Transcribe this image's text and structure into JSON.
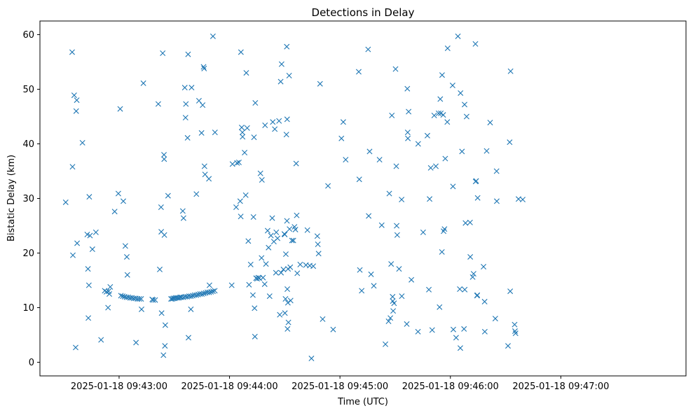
{
  "chart_data": {
    "type": "scatter",
    "title": "Detections in Delay",
    "xlabel": "Time (UTC)",
    "ylabel": "Bistatic Delay (km)",
    "x_unit": "seconds after 2025-01-18 09:42:00",
    "xlim": [
      17,
      368
    ],
    "ylim": [
      -2.5,
      62.5
    ],
    "x_ticks": [
      {
        "value": 60,
        "label": "2025-01-18 09:43:00"
      },
      {
        "value": 120,
        "label": "2025-01-18 09:44:00"
      },
      {
        "value": 180,
        "label": "2025-01-18 09:45:00"
      },
      {
        "value": 240,
        "label": "2025-01-18 09:46:00"
      },
      {
        "value": 300,
        "label": "2025-01-18 09:47:00"
      }
    ],
    "y_ticks": [
      {
        "value": 0,
        "label": "0"
      },
      {
        "value": 10,
        "label": "10"
      },
      {
        "value": 20,
        "label": "20"
      },
      {
        "value": 30,
        "label": "30"
      },
      {
        "value": 40,
        "label": "40"
      },
      {
        "value": 50,
        "label": "50"
      },
      {
        "value": 60,
        "label": "60"
      }
    ],
    "marker": "x",
    "color": "#1f77b4",
    "series": [
      {
        "name": "detections",
        "points": [
          [
            31,
            29.3
          ],
          [
            34.5,
            56.8
          ],
          [
            34.7,
            35.8
          ],
          [
            34.9,
            19.6
          ],
          [
            35.6,
            48.9
          ],
          [
            36.4,
            2.7
          ],
          [
            36.7,
            46.0
          ],
          [
            37,
            48.0
          ],
          [
            37.2,
            21.8
          ],
          [
            40.1,
            40.2
          ],
          [
            42.7,
            23.4
          ],
          [
            43.1,
            17.1
          ],
          [
            43.3,
            8.1
          ],
          [
            43.6,
            14.1
          ],
          [
            43.8,
            30.3
          ],
          [
            44.2,
            23.2
          ],
          [
            45.5,
            20.7
          ],
          [
            47.4,
            23.8
          ],
          [
            50.2,
            4.1
          ],
          [
            52.2,
            13.1
          ],
          [
            53.1,
            12.9
          ],
          [
            54,
            10.0
          ],
          [
            54.3,
            13.0
          ],
          [
            54.7,
            12.5
          ],
          [
            55.2,
            13.8
          ],
          [
            57.6,
            27.6
          ],
          [
            59.6,
            30.9
          ],
          [
            60.6,
            46.4
          ],
          [
            62.3,
            29.5
          ],
          [
            63.4,
            21.3
          ],
          [
            64.2,
            19.3
          ],
          [
            64.5,
            16.0
          ],
          [
            69.2,
            3.6
          ],
          [
            72.2,
            9.7
          ],
          [
            73.2,
            51.1
          ],
          [
            78,
            11.5
          ],
          [
            78.5,
            11.4
          ],
          [
            79.6,
            11.4
          ],
          [
            81.3,
            47.3
          ],
          [
            82.1,
            17.0
          ],
          [
            82.8,
            28.4
          ],
          [
            82.9,
            23.9
          ],
          [
            83.1,
            9.0
          ],
          [
            83.7,
            56.6
          ],
          [
            84.1,
            1.3
          ],
          [
            84.4,
            38.0
          ],
          [
            84.5,
            37.2
          ],
          [
            84.6,
            23.3
          ],
          [
            84.9,
            3.0
          ],
          [
            85.1,
            6.8
          ],
          [
            86.6,
            30.5
          ],
          [
            88.2,
            11.6
          ],
          [
            88.9,
            11.6
          ],
          [
            89.5,
            11.7
          ],
          [
            90.2,
            11.7
          ],
          [
            90.8,
            11.8
          ],
          [
            91.6,
            11.8
          ],
          [
            92.4,
            11.8
          ],
          [
            93.2,
            11.9
          ],
          [
            93.9,
            11.9
          ],
          [
            94.6,
            27.7
          ],
          [
            95,
            26.4
          ],
          [
            95.7,
            50.3
          ],
          [
            96.1,
            44.8
          ],
          [
            96.3,
            47.3
          ],
          [
            97.2,
            41.1
          ],
          [
            97.5,
            56.4
          ],
          [
            97.7,
            4.5
          ],
          [
            99,
            9.7
          ],
          [
            99.4,
            50.3
          ],
          [
            102,
            30.8
          ],
          [
            103.4,
            47.9
          ],
          [
            104.8,
            42.0
          ],
          [
            105.4,
            47.1
          ],
          [
            105.9,
            54.1
          ],
          [
            106.2,
            53.8
          ],
          [
            106.4,
            35.9
          ],
          [
            106.7,
            34.4
          ],
          [
            108.8,
            33.6
          ],
          [
            109.1,
            14.1
          ],
          [
            111,
            59.7
          ],
          [
            112.1,
            42.1
          ],
          [
            121.2,
            14.1
          ],
          [
            121.6,
            36.3
          ],
          [
            123.6,
            28.4
          ],
          [
            124.1,
            36.5
          ],
          [
            125.1,
            36.6
          ],
          [
            125.8,
            29.5
          ],
          [
            126.1,
            26.7
          ],
          [
            126.2,
            56.8
          ],
          [
            126.6,
            43.0
          ],
          [
            127,
            42.1
          ],
          [
            127.1,
            41.3
          ],
          [
            128.2,
            38.4
          ],
          [
            128.8,
            30.6
          ],
          [
            129.1,
            53.0
          ],
          [
            129.6,
            42.9
          ],
          [
            130.2,
            22.2
          ],
          [
            130.6,
            14.2
          ],
          [
            131.5,
            17.9
          ],
          [
            132.7,
            12.3
          ],
          [
            133,
            26.6
          ],
          [
            133.3,
            41.2
          ],
          [
            133.6,
            9.9
          ],
          [
            133.8,
            4.7
          ],
          [
            134,
            47.5
          ],
          [
            134.4,
            15.4
          ],
          [
            135,
            15.3
          ],
          [
            135.6,
            15.5
          ],
          [
            136.2,
            15.4
          ],
          [
            136.8,
            34.6
          ],
          [
            137.4,
            19.1
          ],
          [
            137.6,
            33.4
          ],
          [
            138.2,
            15.5
          ],
          [
            139.1,
            14.3
          ],
          [
            139.3,
            43.4
          ],
          [
            139.8,
            18.0
          ],
          [
            140.7,
            24.1
          ],
          [
            141.2,
            21.0
          ],
          [
            141.8,
            12.1
          ],
          [
            142.5,
            23.2
          ],
          [
            143.2,
            26.4
          ],
          [
            143.5,
            44.0
          ],
          [
            144.1,
            22.1
          ],
          [
            144.6,
            42.7
          ],
          [
            145.2,
            16.4
          ],
          [
            145.4,
            23.8
          ],
          [
            146.1,
            22.7
          ],
          [
            146.9,
            44.2
          ],
          [
            147.3,
            8.7
          ],
          [
            147.8,
            51.4
          ],
          [
            148,
            16.4
          ],
          [
            148.3,
            54.6
          ],
          [
            149.3,
            17.0
          ],
          [
            149.8,
            23.5
          ],
          [
            150,
            23.4
          ],
          [
            150.1,
            9.0
          ],
          [
            150.4,
            11.6
          ],
          [
            150.6,
            19.8
          ],
          [
            150.9,
            41.7
          ],
          [
            151.1,
            57.8
          ],
          [
            151.2,
            25.9
          ],
          [
            151.3,
            44.5
          ],
          [
            151.4,
            13.4
          ],
          [
            151.5,
            6.1
          ],
          [
            151.7,
            10.9
          ],
          [
            151.8,
            17.1
          ],
          [
            152,
            7.3
          ],
          [
            152.4,
            52.5
          ],
          [
            152.6,
            24.4
          ],
          [
            153,
            17.4
          ],
          [
            153.2,
            11.3
          ],
          [
            153.9,
            22.3
          ],
          [
            154.7,
            22.3
          ],
          [
            155.3,
            24.8
          ],
          [
            155.8,
            24.3
          ],
          [
            156.2,
            36.4
          ],
          [
            156.5,
            26.9
          ],
          [
            156.8,
            16.3
          ],
          [
            158.4,
            17.9
          ],
          [
            161.5,
            17.8
          ],
          [
            162.3,
            24.2
          ],
          [
            163.6,
            17.7
          ],
          [
            164.5,
            0.7
          ],
          [
            165.5,
            17.6
          ],
          [
            167.7,
            23.1
          ],
          [
            168,
            21.6
          ],
          [
            168.4,
            19.9
          ],
          [
            169.2,
            51.0
          ],
          [
            170.6,
            7.9
          ],
          [
            173.5,
            32.3
          ],
          [
            176.3,
            6.0
          ],
          [
            180.8,
            41.0
          ],
          [
            181.8,
            44.0
          ],
          [
            183.1,
            37.1
          ],
          [
            190.2,
            53.2
          ],
          [
            190.5,
            33.5
          ],
          [
            190.8,
            16.9
          ],
          [
            191.8,
            13.1
          ],
          [
            195.3,
            57.3
          ],
          [
            195.6,
            26.8
          ],
          [
            196.1,
            38.6
          ],
          [
            196.9,
            16.1
          ],
          [
            198.4,
            14.0
          ],
          [
            201.5,
            37.1
          ],
          [
            202.7,
            25.1
          ],
          [
            204.7,
            3.3
          ],
          [
            206.4,
            7.5
          ],
          [
            206.8,
            30.9
          ],
          [
            207.4,
            8.1
          ],
          [
            207.8,
            18.0
          ],
          [
            208.2,
            45.2
          ],
          [
            208.6,
            12.0
          ],
          [
            208.7,
            11.2
          ],
          [
            208.9,
            9.4
          ],
          [
            209.4,
            10.8
          ],
          [
            210.2,
            53.7
          ],
          [
            210.6,
            35.9
          ],
          [
            210.8,
            25.0
          ],
          [
            211.1,
            23.3
          ],
          [
            212.1,
            17.1
          ],
          [
            213.5,
            29.8
          ],
          [
            213.6,
            12.1
          ],
          [
            216.3,
            7.0
          ],
          [
            216.6,
            50.1
          ],
          [
            216.8,
            42.1
          ],
          [
            216.9,
            41.0
          ],
          [
            217.3,
            45.9
          ],
          [
            218.8,
            15.1
          ],
          [
            222.4,
            5.6
          ],
          [
            222.5,
            40.0
          ],
          [
            225.2,
            23.8
          ],
          [
            227.5,
            41.5
          ],
          [
            228.3,
            13.3
          ],
          [
            228.7,
            29.9
          ],
          [
            229.3,
            35.6
          ],
          [
            230.1,
            5.9
          ],
          [
            231.2,
            45.2
          ],
          [
            232.1,
            35.9
          ],
          [
            233.6,
            45.6
          ],
          [
            234.1,
            10.1
          ],
          [
            234.5,
            48.2
          ],
          [
            234.8,
            45.6
          ],
          [
            235.4,
            20.2
          ],
          [
            235.5,
            52.6
          ],
          [
            236.1,
            45.3
          ],
          [
            236.3,
            24.0
          ],
          [
            236.8,
            24.4
          ],
          [
            237.2,
            37.3
          ],
          [
            238.3,
            44.0
          ],
          [
            238.5,
            57.5
          ],
          [
            241.2,
            50.7
          ],
          [
            241.4,
            32.2
          ],
          [
            241.6,
            6.0
          ],
          [
            243.1,
            4.5
          ],
          [
            244.1,
            59.7
          ],
          [
            245.1,
            13.4
          ],
          [
            245.4,
            2.6
          ],
          [
            245.5,
            49.3
          ],
          [
            246.3,
            38.6
          ],
          [
            247.4,
            6.1
          ],
          [
            247.7,
            47.2
          ],
          [
            247.8,
            13.3
          ],
          [
            248.2,
            25.5
          ],
          [
            248.8,
            45.0
          ],
          [
            250.7,
            25.6
          ],
          [
            250.8,
            19.3
          ],
          [
            252.1,
            15.6
          ],
          [
            252.6,
            16.2
          ],
          [
            253.6,
            58.3
          ],
          [
            253.7,
            33.1
          ],
          [
            254,
            33.2
          ],
          [
            254.5,
            12.2
          ],
          [
            254.6,
            12.3
          ],
          [
            254.8,
            30.1
          ],
          [
            258,
            17.5
          ],
          [
            258.6,
            11.1
          ],
          [
            258.7,
            5.6
          ],
          [
            259.7,
            38.7
          ],
          [
            261.6,
            43.9
          ],
          [
            264.4,
            8.0
          ],
          [
            265.1,
            35.0
          ],
          [
            265.2,
            29.5
          ],
          [
            271.3,
            3.0
          ],
          [
            272.2,
            40.3
          ],
          [
            272.5,
            13.0
          ],
          [
            272.7,
            53.3
          ],
          [
            274.9,
            6.9
          ],
          [
            275.1,
            5.7
          ],
          [
            275.4,
            5.3
          ],
          [
            277,
            29.9
          ],
          [
            279.3,
            29.8
          ],
          [
            61,
            12.2
          ],
          [
            62,
            12.1
          ],
          [
            63,
            12.0
          ],
          [
            64,
            11.9
          ],
          [
            65,
            11.9
          ],
          [
            66,
            11.8
          ],
          [
            67,
            11.8
          ],
          [
            68,
            11.7
          ],
          [
            69,
            11.7
          ],
          [
            70,
            11.6
          ],
          [
            71,
            11.6
          ],
          [
            72,
            11.6
          ],
          [
            95,
            11.9
          ],
          [
            96,
            12.0
          ],
          [
            97,
            12.0
          ],
          [
            98,
            12.1
          ],
          [
            99,
            12.1
          ],
          [
            100,
            12.2
          ],
          [
            101,
            12.3
          ],
          [
            102,
            12.3
          ],
          [
            103,
            12.4
          ],
          [
            104,
            12.5
          ],
          [
            105,
            12.5
          ],
          [
            106,
            12.6
          ],
          [
            107,
            12.7
          ],
          [
            108,
            12.8
          ],
          [
            109,
            12.8
          ],
          [
            110,
            12.9
          ],
          [
            111,
            13.0
          ],
          [
            112,
            13.1
          ]
        ]
      }
    ]
  }
}
